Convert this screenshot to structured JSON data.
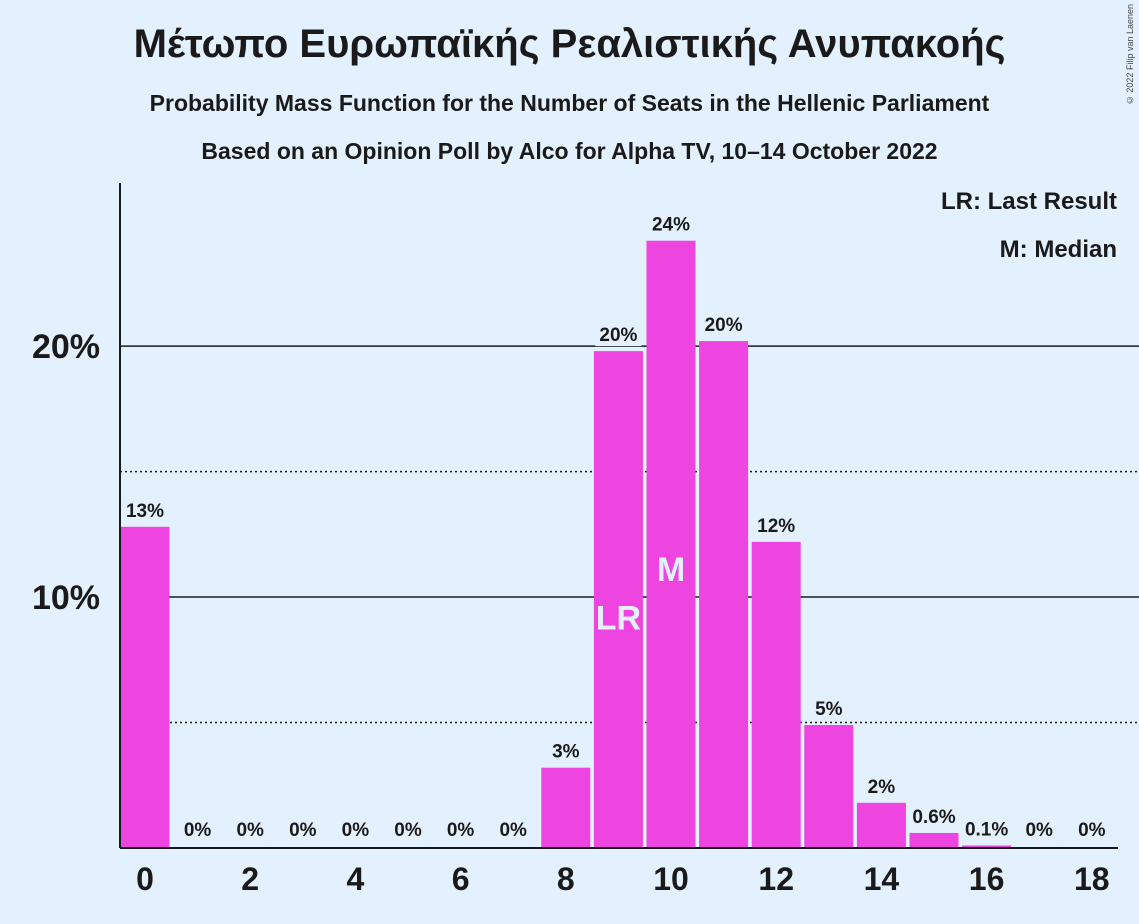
{
  "chart_data": {
    "type": "bar",
    "title": "Μέτωπο Ευρωπαϊκής Ρεαλιστικής Ανυπακοής",
    "subtitle": "Probability Mass Function for the Number of Seats in the Hellenic Parliament",
    "subtitle2": "Based on an Opinion Poll by Alco for Alpha TV, 10–14 October 2022",
    "copyright": "© 2022 Filip van Laenen",
    "categories": [
      0,
      1,
      2,
      3,
      4,
      5,
      6,
      7,
      8,
      9,
      10,
      11,
      12,
      13,
      14,
      15,
      16,
      17,
      18
    ],
    "values": [
      12.8,
      0,
      0,
      0,
      0,
      0,
      0,
      0,
      3.2,
      19.8,
      24.2,
      20.2,
      12.2,
      4.9,
      1.8,
      0.6,
      0.1,
      0,
      0
    ],
    "data_labels": [
      "13%",
      "0%",
      "0%",
      "0%",
      "0%",
      "0%",
      "0%",
      "0%",
      "3%",
      "20%",
      "24%",
      "20%",
      "12%",
      "5%",
      "2%",
      "0.6%",
      "0.1%",
      "0%",
      "0%"
    ],
    "x_tick_labels": [
      "0",
      "2",
      "4",
      "6",
      "8",
      "10",
      "12",
      "14",
      "16",
      "18"
    ],
    "x_tick_values": [
      0,
      2,
      4,
      6,
      8,
      10,
      12,
      14,
      16,
      18
    ],
    "y_tick_labels": [
      "10%",
      "20%"
    ],
    "y_tick_values": [
      10,
      20
    ],
    "ylim": [
      0,
      26.5
    ],
    "solid_gridlines": [
      10,
      20
    ],
    "dotted_gridlines": [
      5,
      15
    ],
    "markers": [
      {
        "category": 9,
        "label": "LR"
      },
      {
        "category": 10,
        "label": "M"
      }
    ],
    "legend": {
      "placement": "top-right",
      "items": [
        "LR: Last Result",
        "M: Median"
      ]
    },
    "colors": {
      "bar": "#ee44e0",
      "background": "#e3f0fd",
      "text": "#1a1a1a"
    }
  }
}
